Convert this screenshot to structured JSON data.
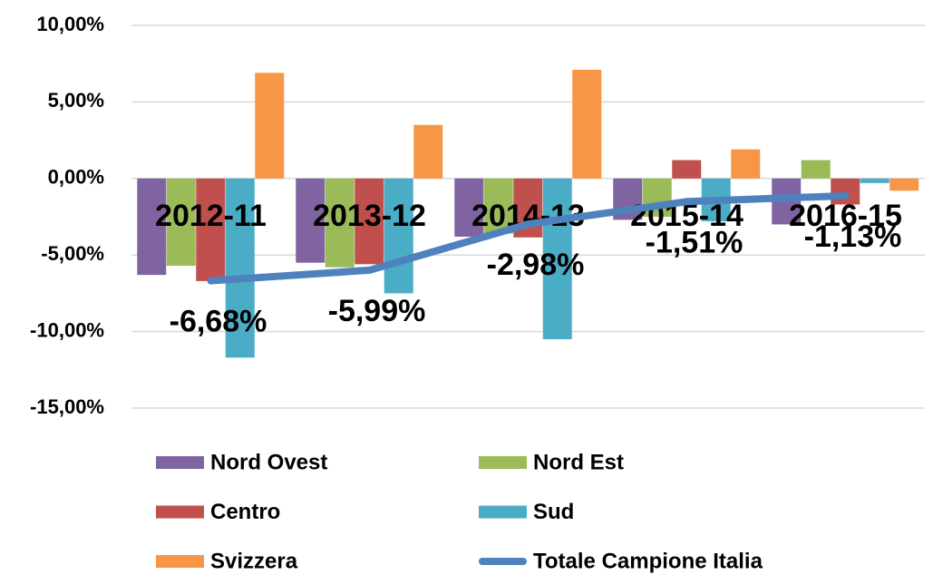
{
  "chart_data": {
    "type": "bar",
    "categories": [
      "2012-11",
      "2013-12",
      "2014-13",
      "2015-14",
      "2016-15"
    ],
    "series": [
      {
        "name": "Nord Ovest",
        "color": "#8064a2",
        "values": [
          -6.3,
          -5.5,
          -3.8,
          -2.7,
          -3.0
        ]
      },
      {
        "name": "Nord Est",
        "color": "#9bbb59",
        "values": [
          -5.7,
          -5.8,
          -3.6,
          -2.5,
          1.2
        ]
      },
      {
        "name": "Centro",
        "color": "#c0504d",
        "values": [
          -6.7,
          -5.6,
          -3.85,
          1.2,
          -1.7
        ]
      },
      {
        "name": "Sud",
        "color": "#4bacc6",
        "values": [
          -11.7,
          -7.5,
          -10.5,
          -2.8,
          -0.3
        ]
      },
      {
        "name": "Svizzera",
        "color": "#f79646",
        "values": [
          6.9,
          3.5,
          7.1,
          1.9,
          -0.8
        ]
      },
      {
        "name": "Totale Campione Italia",
        "color": "#4f81bd",
        "type": "line",
        "values": [
          -6.68,
          -5.99,
          -2.98,
          -1.51,
          -1.13
        ],
        "value_labels": [
          "-6,68%",
          "-5,99%",
          "-2,98%",
          "-1,51%",
          "-1,13%"
        ]
      }
    ],
    "ylim": [
      -15,
      10
    ],
    "yticks": [
      {
        "value": -15,
        "label": "-15,00%"
      },
      {
        "value": -10,
        "label": "-10,00%"
      },
      {
        "value": -5,
        "label": "-5,00%"
      },
      {
        "value": 0,
        "label": "0,00%"
      },
      {
        "value": 5,
        "label": "5,00%"
      },
      {
        "value": 10,
        "label": "10,00%"
      }
    ],
    "grid": true,
    "legend": "bottom"
  }
}
